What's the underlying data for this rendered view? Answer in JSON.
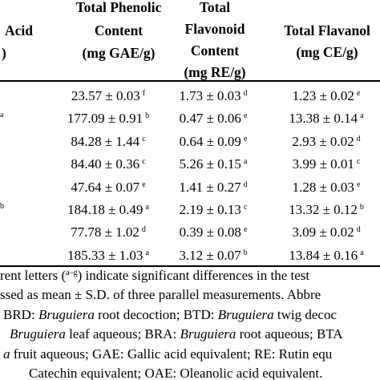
{
  "table": {
    "header": [
      [
        "Acid",
        ")"
      ],
      [
        "Total Phenolic",
        "Content",
        "(mg GAE/g)"
      ],
      [
        "Total",
        "Flavonoid",
        "Content",
        "(mg RE/g)"
      ],
      [
        "Total Flavanol",
        "(mg CE/g)"
      ]
    ],
    "rows": [
      {
        "cells": [
          {
            "value": "23.57 ± 0.03",
            "sup": "f"
          },
          {
            "value": "1.73 ± 0.03",
            "sup": "d"
          },
          {
            "value": "1.23 ± 0.02",
            "sup": "e"
          }
        ]
      },
      {
        "label_sup": "a",
        "cells": [
          {
            "value": "177.09 ± 0.91",
            "sup": "b"
          },
          {
            "value": "0.47 ± 0.06",
            "sup": "e"
          },
          {
            "value": "13.38 ± 0.14",
            "sup": "a"
          }
        ]
      },
      {
        "cells": [
          {
            "value": "84.28 ± 1.44",
            "sup": "c"
          },
          {
            "value": "0.64 ± 0.09",
            "sup": "e"
          },
          {
            "value": "2.93 ± 0.02",
            "sup": "d"
          }
        ]
      },
      {
        "cells": [
          {
            "value": "84.40 ± 0.36",
            "sup": "c"
          },
          {
            "value": "5.26 ± 0.15",
            "sup": "a"
          },
          {
            "value": "3.99 ± 0.01",
            "sup": "c"
          }
        ]
      },
      {
        "cells": [
          {
            "value": "47.64 ± 0.07",
            "sup": "e"
          },
          {
            "value": "1.41 ± 0.27",
            "sup": "d"
          },
          {
            "value": "1.28 ± 0.03",
            "sup": "e"
          }
        ]
      },
      {
        "label_sup": "b",
        "cells": [
          {
            "value": "184.18 ± 0.49",
            "sup": "a"
          },
          {
            "value": "2.19 ± 0.13",
            "sup": "c"
          },
          {
            "value": "13.32 ± 0.12",
            "sup": "b"
          }
        ]
      },
      {
        "cells": [
          {
            "value": "77.78 ± 1.02",
            "sup": "d"
          },
          {
            "value": "0.39 ± 0.08",
            "sup": "e"
          },
          {
            "value": "3.09 ± 0.02",
            "sup": "d"
          }
        ]
      },
      {
        "cells": [
          {
            "value": "185.33 ± 1.03",
            "sup": "a"
          },
          {
            "value": "3.12 ± 0.07",
            "sup": "b"
          },
          {
            "value": "13.84 ± 0.16",
            "sup": "a"
          }
        ]
      }
    ]
  },
  "footnote": [
    [
      "rent letters (",
      {
        "text": "a–g",
        "sup": true
      },
      ") indicate significant differences in the test"
    ],
    [
      "ssed as mean ± S.D. of three parallel measurements. Abbre"
    ],
    [
      "BRD: ",
      {
        "text": "Bruguiera",
        "italic": true
      },
      " root decoction; BTD: ",
      {
        "text": "Bruguiera",
        "italic": true
      },
      " twig decoc"
    ],
    [
      {
        "text": "Bruguiera",
        "italic": true
      },
      " leaf aqueous; BRA: ",
      {
        "text": "Bruguiera",
        "italic": true
      },
      " root aqueous; BTA"
    ],
    [
      {
        "text": "a",
        "italic": true
      },
      " fruit aqueous; GAE: Gallic acid equivalent; RE: Rutin equ"
    ],
    [
      "Catechin equivalent; OAE: Oleanolic acid equivalent."
    ]
  ]
}
